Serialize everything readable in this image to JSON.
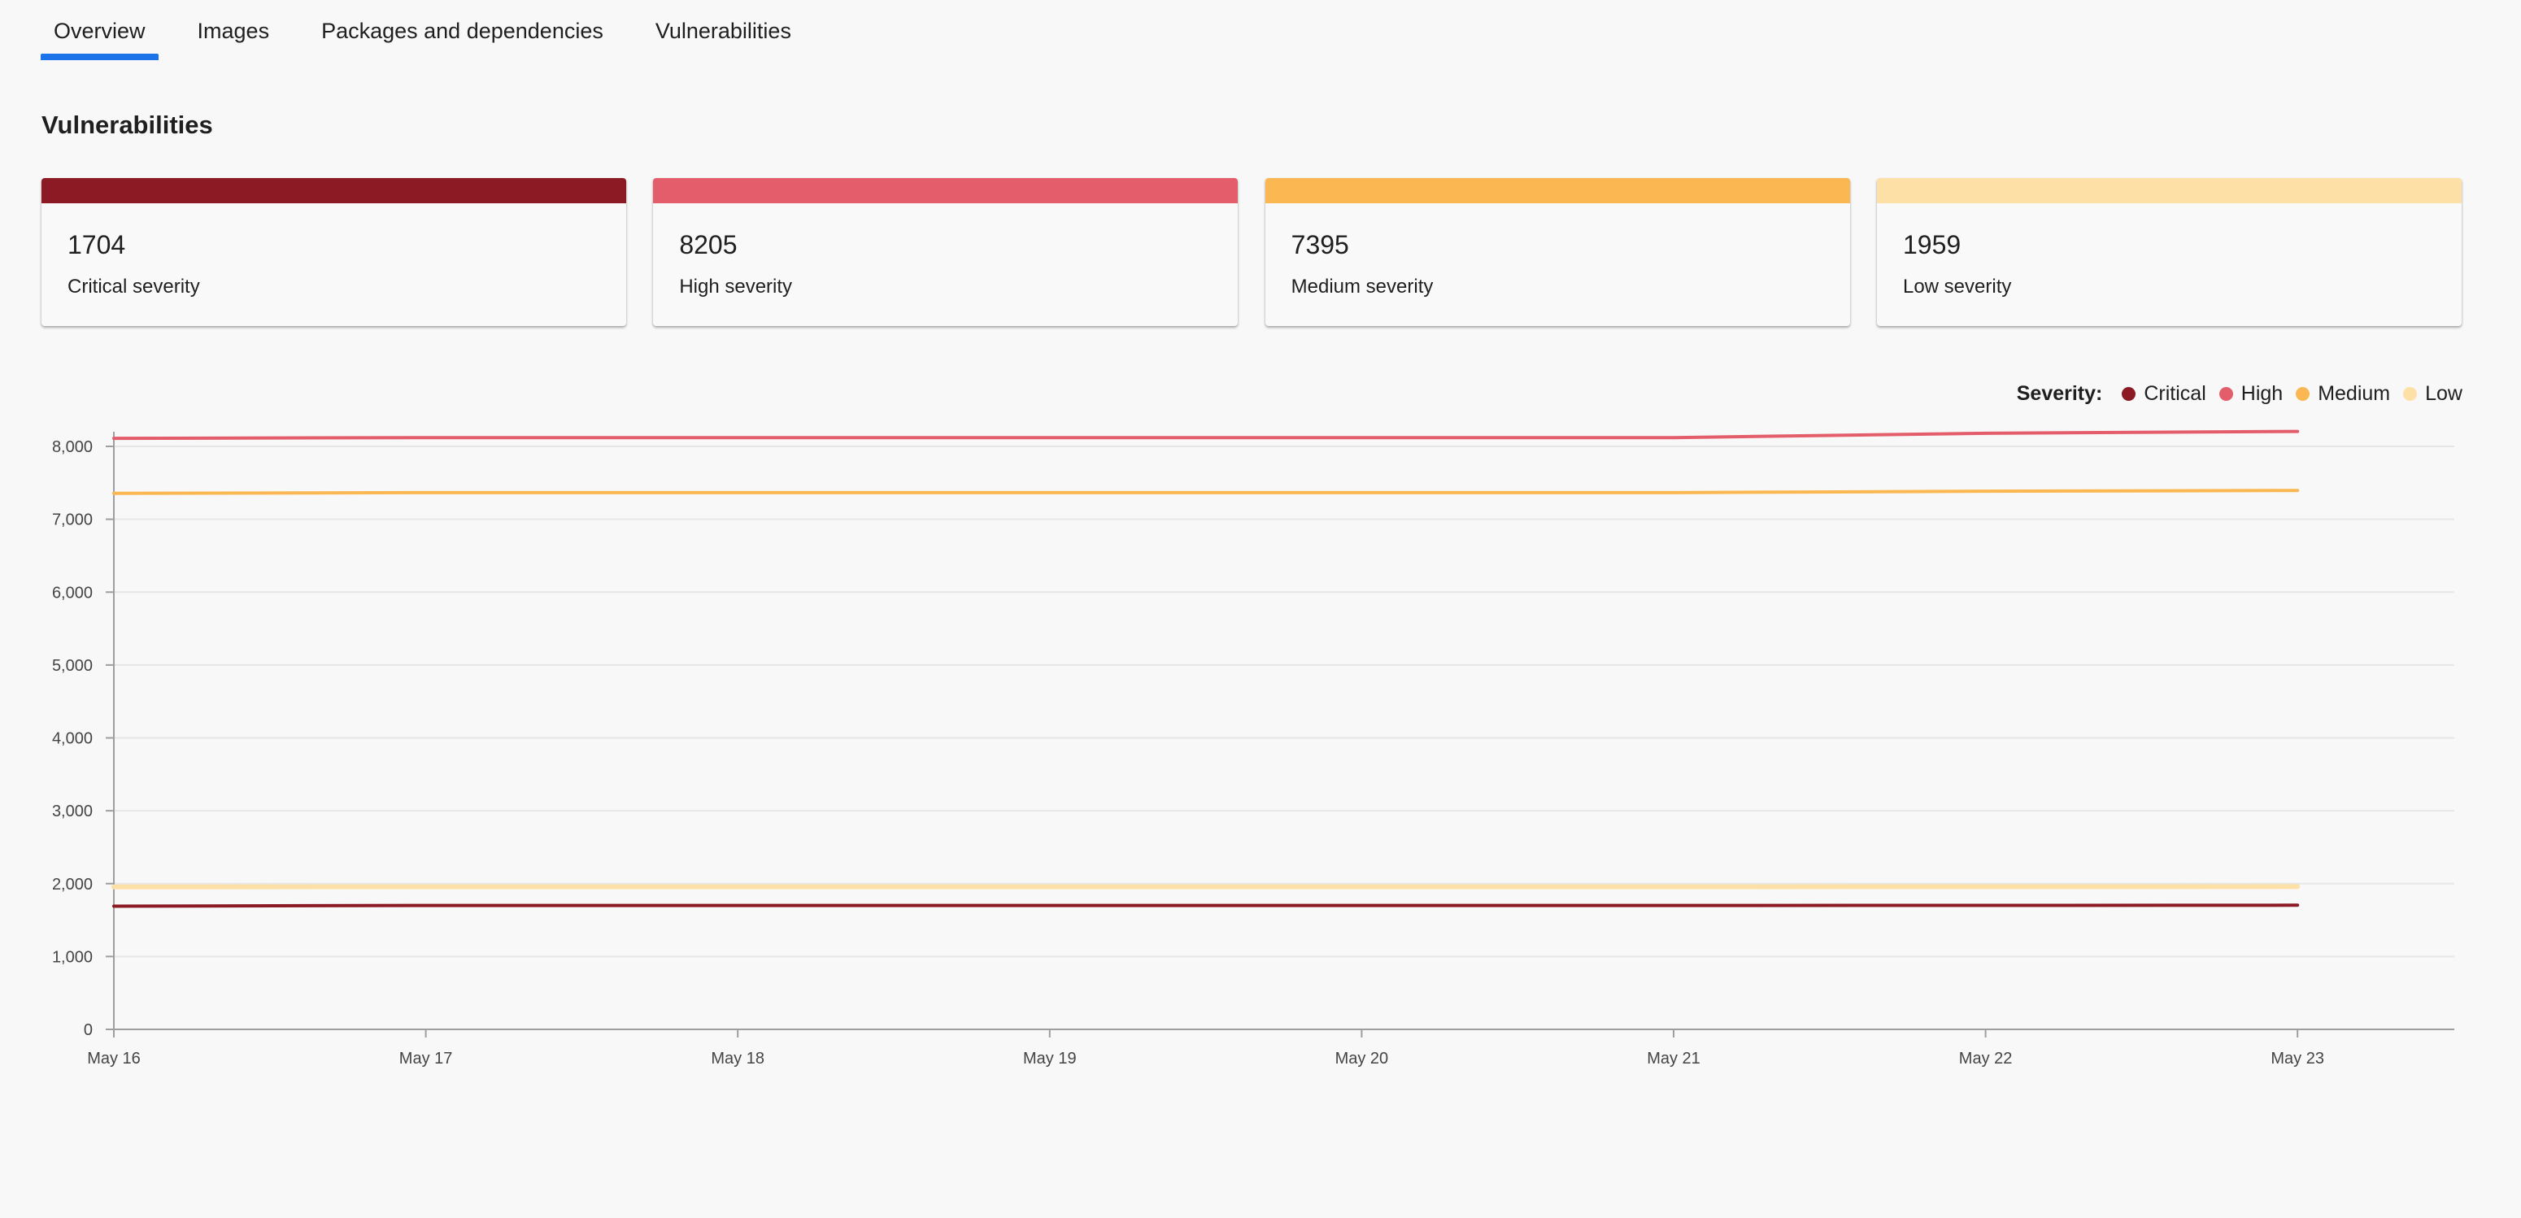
{
  "tabs": [
    {
      "label": "Overview",
      "active": true
    },
    {
      "label": "Images",
      "active": false
    },
    {
      "label": "Packages and dependencies",
      "active": false
    },
    {
      "label": "Vulnerabilities",
      "active": false
    }
  ],
  "section_title": "Vulnerabilities",
  "cards": [
    {
      "count": "1704",
      "label": "Critical severity",
      "color": "#8b1a25"
    },
    {
      "count": "8205",
      "label": "High severity",
      "color": "#e35d6a"
    },
    {
      "count": "7395",
      "label": "Medium severity",
      "color": "#fbb751"
    },
    {
      "count": "1959",
      "label": "Low severity",
      "color": "#fde0a6"
    }
  ],
  "legend": {
    "title": "Severity:",
    "items": [
      {
        "label": "Critical",
        "color": "#8b1a25"
      },
      {
        "label": "High",
        "color": "#e35d6a"
      },
      {
        "label": "Medium",
        "color": "#fbb751"
      },
      {
        "label": "Low",
        "color": "#fde0a6"
      }
    ]
  },
  "chart_data": {
    "type": "line",
    "x": [
      "May 16",
      "May 17",
      "May 18",
      "May 19",
      "May 20",
      "May 21",
      "May 22",
      "May 23"
    ],
    "ylim": [
      0,
      8000
    ],
    "y_ticks": [
      "0",
      "1,000",
      "2,000",
      "3,000",
      "4,000",
      "5,000",
      "6,000",
      "7,000",
      "8,000"
    ],
    "grid": true,
    "legend_position": "top-right",
    "series": [
      {
        "name": "Critical",
        "color": "#8b1a25",
        "values": [
          1690,
          1700,
          1700,
          1700,
          1700,
          1700,
          1702,
          1704
        ]
      },
      {
        "name": "High",
        "color": "#e35d6a",
        "values": [
          8110,
          8120,
          8120,
          8120,
          8120,
          8120,
          8180,
          8205
        ]
      },
      {
        "name": "Medium",
        "color": "#fbb751",
        "values": [
          7355,
          7365,
          7365,
          7365,
          7365,
          7365,
          7385,
          7395
        ]
      },
      {
        "name": "Low",
        "color": "#fde0a6",
        "values": [
          1955,
          1957,
          1957,
          1957,
          1957,
          1957,
          1958,
          1959
        ]
      }
    ]
  }
}
